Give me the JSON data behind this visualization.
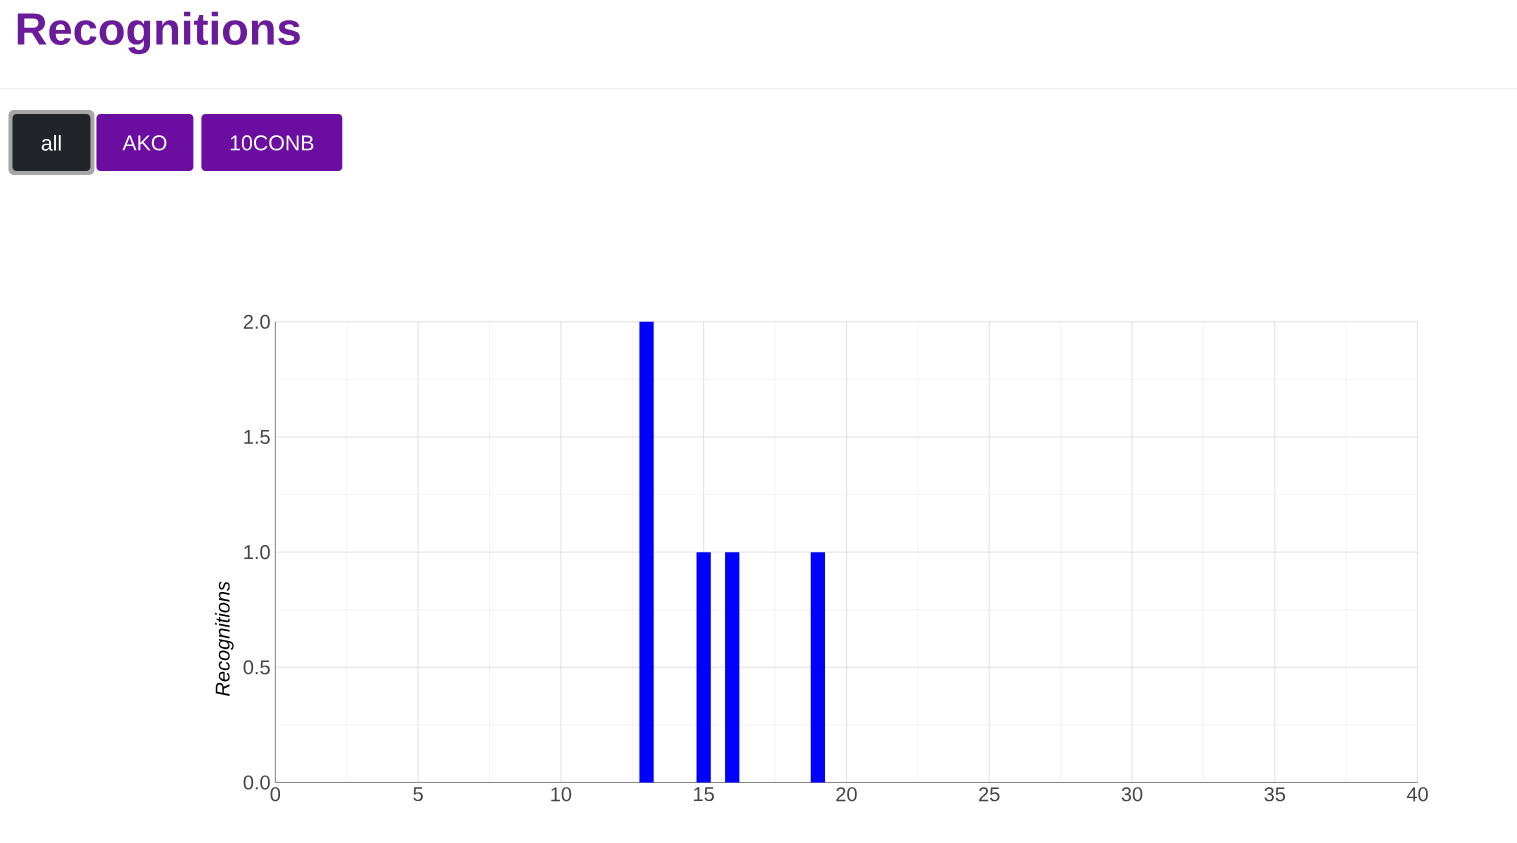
{
  "chart_data": {
    "type": "bar",
    "title": "Recognitions",
    "ylabel": "Recognitions",
    "annotations": [
      "all",
      "AKO",
      "10CONB"
    ],
    "x": [
      13,
      15,
      16,
      19
    ],
    "values": [
      2,
      1,
      1,
      1
    ],
    "color": "#0000ff",
    "xlim": [
      0,
      40
    ],
    "ylim": [
      0,
      2
    ],
    "xticks": [
      0,
      5,
      10,
      15,
      20,
      25,
      30,
      35,
      40
    ],
    "yticks": [
      {
        "value": 0,
        "label": "0.0"
      },
      {
        "value": 0.5,
        "label": "0.5"
      },
      {
        "value": 1,
        "label": "1.0"
      },
      {
        "value": 1.5,
        "label": "1.5"
      },
      {
        "value": 2,
        "label": "2.0"
      }
    ],
    "grid": true
  }
}
